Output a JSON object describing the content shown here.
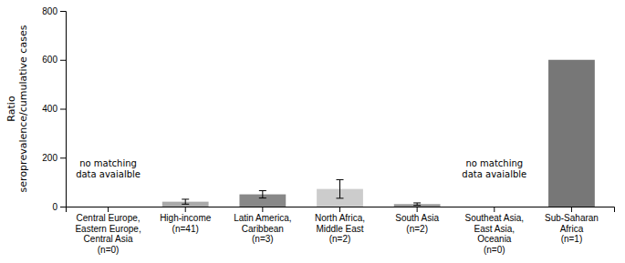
{
  "chart_data": {
    "type": "bar",
    "categories": [
      "Central Europe,\nEastern Europe,\nCentral Asia\n(n=0)",
      "High-income\n(n=41)",
      "Latin America,\nCaribbean\n(n=3)",
      "North Africa,\nMiddle East\n(n=2)",
      "South Asia\n(n=2)",
      "Southeat Asia,\nEast Asia,\nOceania\n(n=0)",
      "Sub-Saharan\nAfrica\n(n=1)"
    ],
    "values": [
      null,
      20,
      50,
      72,
      10,
      null,
      600
    ],
    "error_low": [
      null,
      10,
      15,
      38,
      5,
      null,
      null
    ],
    "error_high": [
      null,
      10,
      15,
      38,
      5,
      null,
      null
    ],
    "colors": [
      null,
      "#aaaaaa",
      "#888888",
      "#cccccc",
      "#999999",
      null,
      "#777777"
    ],
    "ylabel": "Ratio\nseroprevalence/cumulative cases",
    "ylim": [
      0,
      800
    ],
    "yticks": [
      0,
      200,
      400,
      600,
      800
    ],
    "grid": false,
    "annotations": [
      {
        "text": "no matching\ndata avaialble",
        "x": 0,
        "y": 155
      },
      {
        "text": "no matching\ndata avaialble",
        "x": 5,
        "y": 155
      }
    ]
  }
}
